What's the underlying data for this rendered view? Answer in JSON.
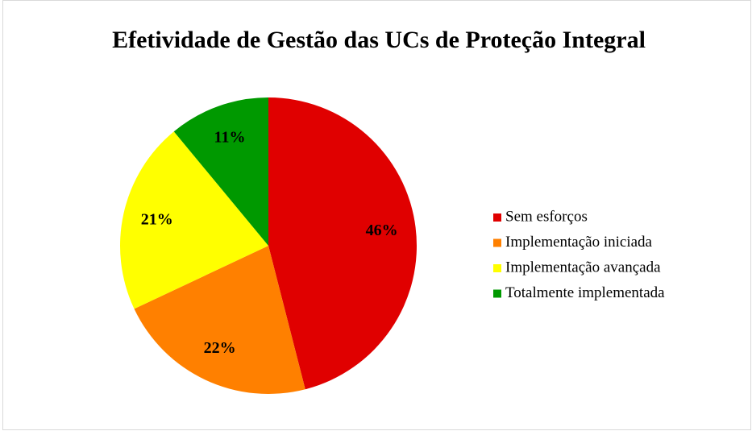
{
  "chart_data": {
    "type": "pie",
    "title": "Efetividade de Gestão das UCs de Proteção Integral",
    "categories": [
      "Sem esforços",
      "Implementação iniciada",
      "Implementação avançada",
      "Totalmente implementada"
    ],
    "values": [
      46,
      22,
      21,
      11
    ],
    "value_labels": [
      "46%",
      "22%",
      "21%",
      "11%"
    ],
    "colors": [
      "#e00000",
      "#ff8000",
      "#ffff00",
      "#009900"
    ],
    "legend": "right"
  }
}
